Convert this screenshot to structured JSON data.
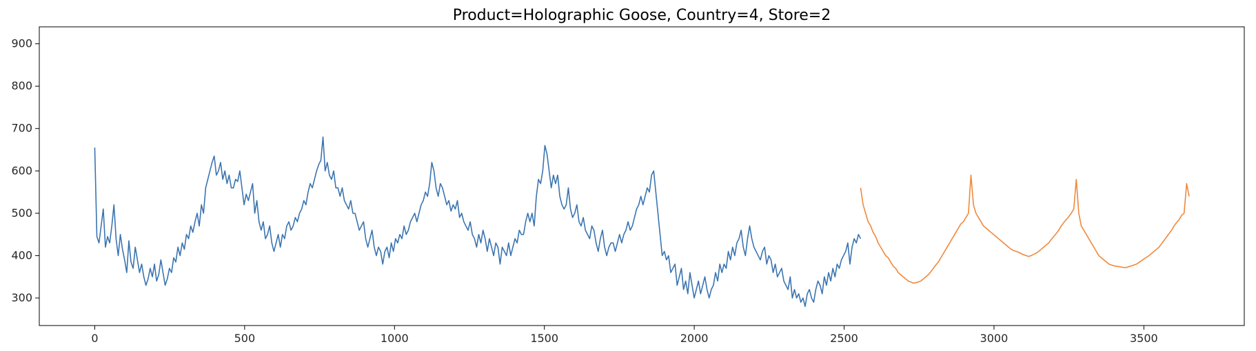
{
  "chart_data": {
    "type": "line",
    "title": "Product=Holographic Goose, Country=4, Store=2",
    "xlabel": "",
    "ylabel": "",
    "xlim": [
      -185,
      3835
    ],
    "ylim": [
      235,
      940
    ],
    "x_ticks": [
      0,
      500,
      1000,
      1500,
      2000,
      2500,
      3000,
      3500
    ],
    "y_ticks": [
      300,
      400,
      500,
      600,
      700,
      800,
      900
    ],
    "grid": false,
    "legend": "none",
    "x_start": 0,
    "x_step": 7,
    "series": [
      {
        "color": "#3a74b0",
        "x_range": [
          0,
          2555
        ],
        "values": [
          655,
          445,
          430,
          470,
          510,
          420,
          445,
          430,
          470,
          520,
          440,
          400,
          450,
          415,
          390,
          360,
          435,
          385,
          370,
          420,
          390,
          360,
          380,
          350,
          330,
          345,
          370,
          350,
          380,
          340,
          355,
          390,
          360,
          330,
          345,
          370,
          360,
          395,
          385,
          420,
          400,
          430,
          415,
          450,
          440,
          470,
          455,
          480,
          500,
          470,
          520,
          500,
          560,
          580,
          600,
          620,
          635,
          590,
          600,
          620,
          580,
          600,
          570,
          590,
          560,
          560,
          580,
          575,
          600,
          560,
          520,
          545,
          530,
          550,
          570,
          500,
          530,
          480,
          460,
          480,
          440,
          450,
          470,
          430,
          410,
          430,
          450,
          420,
          450,
          440,
          470,
          480,
          460,
          470,
          490,
          480,
          500,
          510,
          530,
          520,
          550,
          570,
          560,
          580,
          600,
          615,
          625,
          680,
          600,
          620,
          590,
          580,
          600,
          560,
          560,
          540,
          560,
          530,
          520,
          510,
          530,
          500,
          500,
          480,
          460,
          470,
          480,
          440,
          420,
          440,
          460,
          420,
          400,
          420,
          410,
          380,
          410,
          420,
          395,
          430,
          410,
          440,
          430,
          450,
          440,
          470,
          450,
          460,
          480,
          490,
          500,
          480,
          500,
          520,
          530,
          550,
          540,
          570,
          620,
          600,
          560,
          540,
          570,
          560,
          540,
          520,
          530,
          505,
          520,
          510,
          530,
          490,
          500,
          480,
          470,
          460,
          480,
          450,
          440,
          420,
          450,
          430,
          460,
          440,
          410,
          440,
          420,
          400,
          430,
          420,
          380,
          420,
          410,
          400,
          430,
          400,
          420,
          440,
          430,
          460,
          450,
          450,
          480,
          500,
          480,
          500,
          470,
          540,
          580,
          570,
          600,
          660,
          640,
          600,
          560,
          590,
          570,
          590,
          540,
          520,
          510,
          520,
          560,
          510,
          490,
          500,
          520,
          480,
          470,
          490,
          460,
          450,
          440,
          470,
          460,
          430,
          410,
          440,
          460,
          420,
          400,
          420,
          430,
          430,
          410,
          430,
          450,
          430,
          450,
          460,
          480,
          460,
          470,
          490,
          510,
          520,
          540,
          520,
          540,
          560,
          550,
          590,
          600,
          550,
          500,
          450,
          400,
          410,
          390,
          400,
          360,
          370,
          380,
          330,
          350,
          370,
          320,
          340,
          310,
          360,
          330,
          300,
          320,
          340,
          310,
          330,
          350,
          320,
          300,
          320,
          330,
          360,
          340,
          380,
          360,
          380,
          370,
          410,
          390,
          420,
          400,
          430,
          440,
          460,
          420,
          400,
          440,
          470,
          440,
          420,
          410,
          400,
          390,
          410,
          420,
          380,
          400,
          390,
          360,
          380,
          350,
          360,
          370,
          340,
          330,
          320,
          350,
          300,
          320,
          300,
          310,
          290,
          300,
          280,
          310,
          320,
          300,
          290,
          320,
          340,
          330,
          310,
          350,
          330,
          360,
          340,
          370,
          350,
          380,
          370,
          390,
          400,
          410,
          430,
          380,
          420,
          440,
          430,
          450,
          440
        ]
      },
      {
        "color": "#f0883a",
        "x_range": [
          2555,
          3651
        ],
        "values": [
          560,
          520,
          500,
          480,
          470,
          455,
          445,
          430,
          420,
          410,
          400,
          395,
          385,
          375,
          370,
          360,
          355,
          350,
          345,
          340,
          338,
          335,
          336,
          338,
          340,
          345,
          350,
          355,
          362,
          370,
          378,
          385,
          395,
          405,
          415,
          425,
          435,
          445,
          455,
          465,
          475,
          480,
          490,
          500,
          590,
          520,
          500,
          490,
          480,
          470,
          465,
          460,
          455,
          450,
          445,
          440,
          435,
          430,
          425,
          420,
          415,
          412,
          410,
          408,
          405,
          402,
          400,
          398,
          400,
          403,
          406,
          410,
          415,
          420,
          425,
          430,
          438,
          445,
          452,
          460,
          470,
          478,
          485,
          492,
          500,
          510,
          580,
          500,
          470,
          460,
          450,
          440,
          430,
          420,
          410,
          400,
          395,
          390,
          385,
          380,
          378,
          376,
          375,
          374,
          373,
          372,
          372,
          374,
          376,
          378,
          380,
          384,
          388,
          392,
          396,
          400,
          405,
          410,
          415,
          420,
          428,
          436,
          444,
          452,
          460,
          470,
          478,
          485,
          495,
          500,
          570,
          540
        ]
      }
    ]
  }
}
